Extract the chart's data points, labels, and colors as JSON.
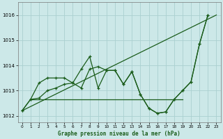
{
  "xlabel": "Graphe pression niveau de la mer (hPa)",
  "ylim": [
    1011.75,
    1016.5
  ],
  "xlim": [
    -0.5,
    23.5
  ],
  "yticks": [
    1012,
    1013,
    1014,
    1015,
    1016
  ],
  "xticks": [
    0,
    1,
    2,
    3,
    4,
    5,
    6,
    7,
    8,
    9,
    10,
    11,
    12,
    13,
    14,
    15,
    16,
    17,
    18,
    19,
    20,
    21,
    22,
    23
  ],
  "bg_color": "#cce8e8",
  "grid_color": "#aad0d0",
  "line_color": "#1a5c1a",
  "diag_line": {
    "x": [
      0,
      23
    ],
    "y": [
      1012.2,
      1016.0
    ]
  },
  "flat_line": {
    "x": [
      1,
      19
    ],
    "y": [
      1012.65,
      1012.65
    ]
  },
  "main_curve": {
    "x": [
      0,
      1,
      2,
      3,
      4,
      5,
      6,
      7,
      8,
      9,
      10,
      11,
      12,
      13,
      14,
      15,
      16,
      17,
      18,
      19,
      20,
      21,
      22
    ],
    "y": [
      1012.2,
      1012.65,
      1012.7,
      1013.0,
      1013.1,
      1013.25,
      1013.3,
      1013.85,
      1014.35,
      1013.1,
      1013.8,
      1013.8,
      1013.25,
      1013.75,
      1012.85,
      1012.3,
      1012.1,
      1012.15,
      1012.65,
      1013.0,
      1013.35,
      1014.85,
      1016.0
    ]
  },
  "second_curve": {
    "x": [
      0,
      1,
      2,
      3,
      4,
      5,
      6,
      7,
      8,
      9,
      10,
      11,
      12,
      13,
      14,
      15,
      16,
      17,
      18,
      19,
      20,
      21,
      22
    ],
    "y": [
      1012.2,
      1012.65,
      1013.3,
      1013.5,
      1013.5,
      1013.5,
      1013.3,
      1013.1,
      1013.85,
      1013.95,
      1013.8,
      1013.8,
      1013.25,
      1013.75,
      1012.85,
      1012.3,
      1012.1,
      1012.15,
      1012.65,
      1013.0,
      1013.35,
      1014.85,
      1016.0
    ]
  }
}
